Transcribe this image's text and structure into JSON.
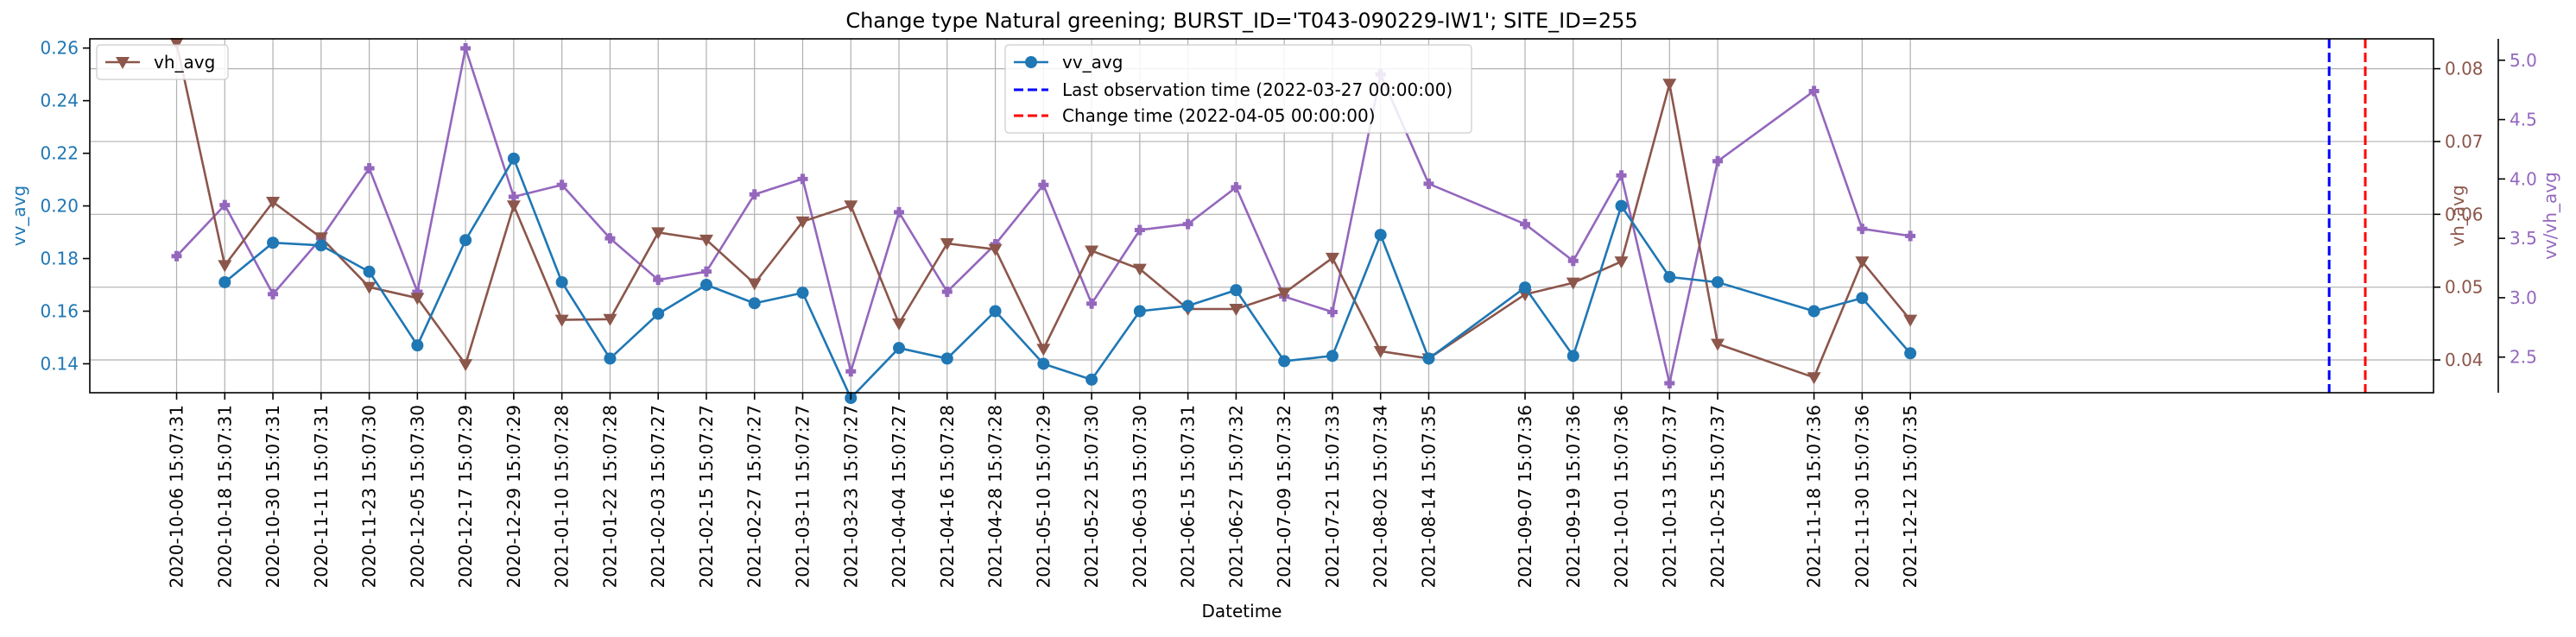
{
  "chart_data": {
    "type": "line",
    "title": "Change type Natural greening; BURST_ID='T043-090229-IW1'; SITE_ID=255",
    "xlabel": "Datetime",
    "x": [
      "2020-10-06 15:07:31",
      "2020-10-18 15:07:31",
      "2020-10-30 15:07:31",
      "2020-11-11 15:07:31",
      "2020-11-23 15:07:30",
      "2020-12-05 15:07:30",
      "2020-12-17 15:07:29",
      "2020-12-29 15:07:29",
      "2021-01-10 15:07:28",
      "2021-01-22 15:07:28",
      "2021-02-03 15:07:27",
      "2021-02-15 15:07:27",
      "2021-02-27 15:07:27",
      "2021-03-11 15:07:27",
      "2021-03-23 15:07:27",
      "2021-04-04 15:07:27",
      "2021-04-16 15:07:28",
      "2021-04-28 15:07:28",
      "2021-05-10 15:07:29",
      "2021-05-22 15:07:30",
      "2021-06-03 15:07:30",
      "2021-06-15 15:07:31",
      "2021-06-27 15:07:32",
      "2021-07-09 15:07:32",
      "2021-07-21 15:07:33",
      "2021-08-02 15:07:34",
      "2021-08-14 15:07:35",
      "2021-09-07 15:07:36",
      "2021-09-19 15:07:36",
      "2021-10-01 15:07:36",
      "2021-10-13 15:07:37",
      "2021-10-25 15:07:37",
      "2021-11-18 15:07:36",
      "2021-11-30 15:07:36",
      "2021-12-12 15:07:35"
    ],
    "xlim": [
      "2020-09-15",
      "2022-04-22"
    ],
    "axes": {
      "left": {
        "label": "vv_avg",
        "ylim": [
          0.129,
          0.2635
        ],
        "ticks": [
          0.14,
          0.16,
          0.18,
          0.2,
          0.22,
          0.24,
          0.26
        ],
        "tick_labels": [
          "0.14",
          "0.16",
          "0.18",
          "0.20",
          "0.22",
          "0.24",
          "0.26"
        ],
        "color": "#1f77b4"
      },
      "right": {
        "label": "vh_avg",
        "ylim": [
          0.0355,
          0.0841
        ],
        "ticks": [
          0.04,
          0.05,
          0.06,
          0.07,
          0.08
        ],
        "tick_labels": [
          "0.04",
          "0.05",
          "0.06",
          "0.07",
          "0.08"
        ],
        "color": "#8c564b"
      },
      "right2": {
        "label": "vv/vh_avg",
        "ylim": [
          2.2,
          5.18
        ],
        "ticks": [
          2.5,
          3.0,
          3.5,
          4.0,
          4.5,
          5.0
        ],
        "tick_labels": [
          "2.5",
          "3.0",
          "3.5",
          "4.0",
          "4.5",
          "5.0"
        ],
        "color": "#9467bd"
      }
    },
    "series": [
      {
        "name": "vv_avg",
        "axis": "left",
        "color": "#1f77b4",
        "marker": "circle",
        "values": [
          null,
          0.171,
          0.186,
          0.185,
          0.175,
          0.147,
          0.187,
          0.218,
          0.171,
          0.142,
          0.159,
          0.17,
          0.163,
          0.167,
          0.127,
          0.146,
          0.142,
          0.16,
          0.14,
          0.134,
          0.16,
          0.162,
          0.168,
          0.141,
          0.143,
          0.189,
          0.142,
          0.169,
          0.143,
          0.2,
          0.173,
          0.171,
          0.16,
          0.165,
          0.144
        ]
      },
      {
        "name": "vh_avg",
        "axis": "right",
        "color": "#8c564b",
        "marker": "triangle-down",
        "values": [
          0.0835,
          0.053,
          0.0617,
          0.0568,
          0.05,
          0.0485,
          0.0394,
          0.0612,
          0.0455,
          0.0456,
          0.0575,
          0.0565,
          0.0505,
          0.059,
          0.0612,
          0.045,
          0.056,
          0.0552,
          0.0415,
          0.055,
          0.0525,
          0.047,
          0.047,
          0.0492,
          0.054,
          0.0412,
          0.0402,
          0.049,
          0.0506,
          0.0535,
          0.0779,
          0.0422,
          0.0376,
          0.0535,
          0.0455
        ]
      },
      {
        "name": "vv/vh_avg",
        "axis": "right2",
        "color": "#9467bd",
        "marker": "plus",
        "values": [
          3.35,
          3.78,
          3.03,
          3.5,
          4.09,
          3.05,
          5.1,
          3.85,
          3.95,
          3.5,
          3.15,
          3.22,
          3.87,
          4.0,
          2.38,
          3.72,
          3.05,
          3.45,
          3.95,
          2.95,
          3.57,
          3.62,
          3.93,
          3.01,
          2.88,
          4.88,
          3.96,
          3.62,
          3.31,
          4.03,
          2.28,
          4.15,
          4.74,
          3.58,
          3.52
        ]
      }
    ],
    "vlines": [
      {
        "label": "Last observation time (2022-03-27 00:00:00)",
        "x": "2022-03-27",
        "color": "#0000ff",
        "style": "dashed"
      },
      {
        "label": "Change time (2022-04-05 00:00:00)",
        "x": "2022-04-05",
        "color": "#ff0000",
        "style": "dashed"
      }
    ],
    "legend_left": {
      "placement": "upper-left",
      "entries": [
        "vh_avg"
      ]
    },
    "legend_center": {
      "placement": "upper-center",
      "entries": [
        "vv_avg",
        "Last observation time (2022-03-27 00:00:00)",
        "Change time (2022-04-05 00:00:00)"
      ]
    },
    "grid": true
  }
}
